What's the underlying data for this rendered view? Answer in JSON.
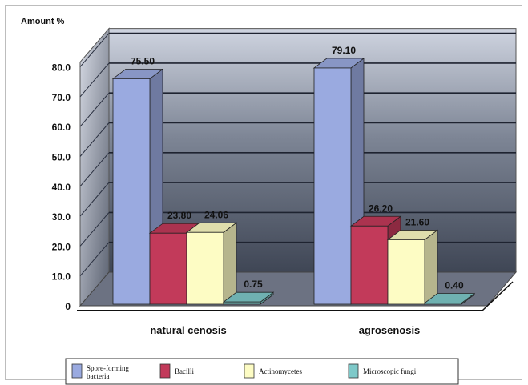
{
  "chart_data": {
    "type": "bar",
    "ylabel": "Amount %",
    "ylim": [
      0,
      80
    ],
    "yticks": [
      "0",
      "10.0",
      "20.0",
      "30.0",
      "40.0",
      "50.0",
      "60.0",
      "70.0",
      "80.0"
    ],
    "categories": [
      "natural cenosis",
      "agrosenosis"
    ],
    "series": [
      {
        "name": "Spore-forming bacteria",
        "values": [
          75.5,
          79.1
        ],
        "labels": [
          "75.50",
          "79.10"
        ],
        "color": "#9aaae0"
      },
      {
        "name": "Bacilli",
        "values": [
          23.8,
          26.2
        ],
        "labels": [
          "23.80",
          "26.20"
        ],
        "color": "#c23a5a"
      },
      {
        "name": "Actinomycetes",
        "values": [
          24.06,
          21.6
        ],
        "labels": [
          "24.06",
          "21.60"
        ],
        "color": "#fdfcc4"
      },
      {
        "name": "Microscopic fungi",
        "values": [
          0.75,
          0.4
        ],
        "labels": [
          "0.75",
          "0.40"
        ],
        "color": "#7ec9c9"
      }
    ],
    "legend_position": "bottom",
    "grid": true,
    "chart_style": "3d-clustered-column"
  }
}
